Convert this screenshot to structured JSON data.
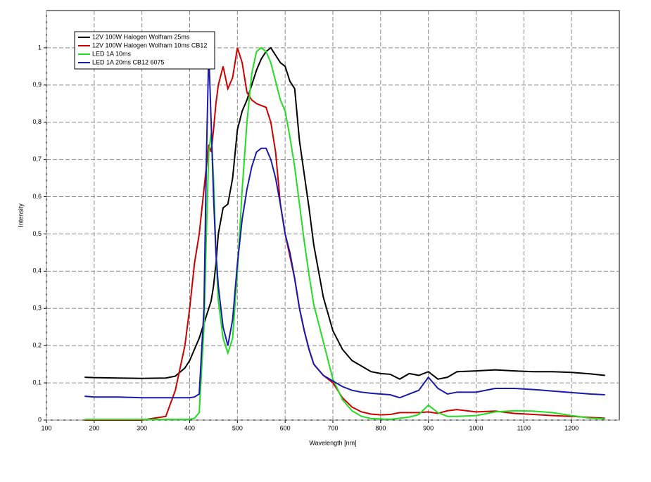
{
  "chart_data": {
    "type": "line",
    "xlabel": "Wavelength [nm]",
    "ylabel": "Intensity",
    "xlim": [
      100,
      1300
    ],
    "ylim": [
      0,
      1.1
    ],
    "xticks": [
      100,
      200,
      300,
      400,
      500,
      600,
      700,
      800,
      900,
      1000,
      1100,
      1200
    ],
    "yticks": [
      0,
      {
        "value": 0.1,
        "label": "0,1"
      },
      {
        "value": 0.2,
        "label": "0,2"
      },
      {
        "value": 0.3,
        "label": "0,3"
      },
      {
        "value": 0.4,
        "label": "0,4"
      },
      {
        "value": 0.5,
        "label": "0,5"
      },
      {
        "value": 0.6,
        "label": "0,6"
      },
      {
        "value": 0.7,
        "label": "0,7"
      },
      {
        "value": 0.8,
        "label": "0,8"
      },
      {
        "value": 0.9,
        "label": "0,9"
      },
      1
    ],
    "grid": true,
    "legend": "upper left",
    "x": [
      180,
      200,
      250,
      300,
      350,
      370,
      390,
      400,
      410,
      420,
      430,
      435,
      440,
      445,
      450,
      455,
      460,
      470,
      480,
      490,
      500,
      510,
      520,
      530,
      540,
      550,
      560,
      570,
      580,
      590,
      600,
      610,
      620,
      630,
      640,
      650,
      660,
      680,
      700,
      720,
      740,
      760,
      780,
      800,
      820,
      840,
      860,
      880,
      900,
      920,
      940,
      960,
      1000,
      1040,
      1080,
      1120,
      1160,
      1200,
      1240,
      1270
    ],
    "series": [
      {
        "name": "12V 100W Halogen Wolfram 25ms",
        "color": "#000000",
        "values": [
          0.115,
          0.114,
          0.113,
          0.112,
          0.113,
          0.118,
          0.14,
          0.16,
          0.19,
          0.22,
          0.26,
          0.28,
          0.3,
          0.32,
          0.36,
          0.42,
          0.5,
          0.57,
          0.58,
          0.65,
          0.78,
          0.83,
          0.86,
          0.9,
          0.94,
          0.97,
          0.99,
          1.0,
          0.98,
          0.96,
          0.95,
          0.91,
          0.89,
          0.75,
          0.66,
          0.57,
          0.47,
          0.33,
          0.24,
          0.19,
          0.16,
          0.145,
          0.13,
          0.125,
          0.123,
          0.11,
          0.125,
          0.12,
          0.13,
          0.11,
          0.115,
          0.13,
          0.132,
          0.135,
          0.132,
          0.13,
          0.13,
          0.128,
          0.124,
          0.12
        ]
      },
      {
        "name": "12V 100W Halogen Wolfram 10ms CB12",
        "color": "#cc0000",
        "values": [
          0.0,
          0.0,
          0.0,
          0.0,
          0.01,
          0.08,
          0.2,
          0.3,
          0.42,
          0.5,
          0.62,
          0.68,
          0.74,
          0.72,
          0.78,
          0.85,
          0.9,
          0.95,
          0.89,
          0.92,
          1.0,
          0.96,
          0.88,
          0.86,
          0.85,
          0.845,
          0.84,
          0.8,
          0.72,
          0.58,
          0.5,
          0.44,
          0.38,
          0.3,
          0.24,
          0.19,
          0.15,
          0.12,
          0.1,
          0.06,
          0.035,
          0.022,
          0.016,
          0.014,
          0.015,
          0.02,
          0.02,
          0.02,
          0.022,
          0.018,
          0.025,
          0.028,
          0.022,
          0.024,
          0.018,
          0.015,
          0.012,
          0.01,
          0.007,
          0.005
        ]
      },
      {
        "name": "LED 1A 10ms",
        "color": "#22dd22",
        "values": [
          0.002,
          0.002,
          0.002,
          0.002,
          0.002,
          0.002,
          0.002,
          0.002,
          0.005,
          0.02,
          0.25,
          0.5,
          0.72,
          0.77,
          0.65,
          0.45,
          0.32,
          0.22,
          0.18,
          0.22,
          0.4,
          0.62,
          0.8,
          0.93,
          0.99,
          1.0,
          0.99,
          0.96,
          0.91,
          0.86,
          0.83,
          0.76,
          0.68,
          0.58,
          0.48,
          0.39,
          0.31,
          0.21,
          0.11,
          0.055,
          0.025,
          0.01,
          0.004,
          0.003,
          0.002,
          0.005,
          0.008,
          0.015,
          0.04,
          0.02,
          0.01,
          0.01,
          0.012,
          0.022,
          0.025,
          0.024,
          0.02,
          0.012,
          0.005,
          0.003
        ]
      },
      {
        "name": "LED 1A 20ms CB12 6075",
        "color": "#1a1aaa",
        "values": [
          0.064,
          0.062,
          0.062,
          0.06,
          0.06,
          0.06,
          0.06,
          0.06,
          0.062,
          0.07,
          0.3,
          0.7,
          0.99,
          0.8,
          0.6,
          0.45,
          0.36,
          0.25,
          0.2,
          0.27,
          0.42,
          0.54,
          0.62,
          0.68,
          0.72,
          0.73,
          0.73,
          0.7,
          0.65,
          0.58,
          0.5,
          0.45,
          0.38,
          0.3,
          0.24,
          0.19,
          0.15,
          0.12,
          0.105,
          0.09,
          0.08,
          0.075,
          0.072,
          0.07,
          0.068,
          0.06,
          0.07,
          0.08,
          0.115,
          0.085,
          0.07,
          0.075,
          0.075,
          0.085,
          0.085,
          0.082,
          0.078,
          0.074,
          0.07,
          0.068
        ]
      }
    ]
  }
}
